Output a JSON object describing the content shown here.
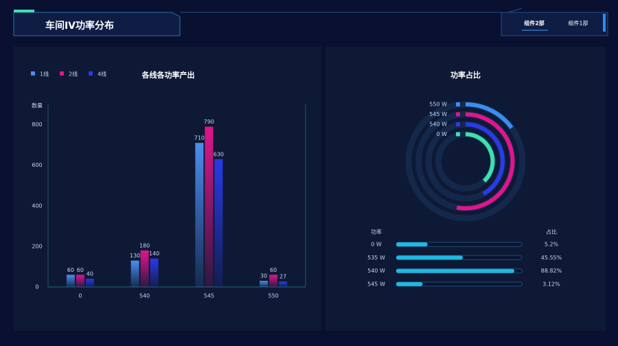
{
  "header": {
    "title": "车间IV功率分布",
    "tabs": [
      "组件2部",
      "组件1部"
    ]
  },
  "chart_data": [
    {
      "type": "bar",
      "title": "各线各功率产出",
      "y_label": "数量",
      "categories": [
        "0",
        "540",
        "545",
        "550"
      ],
      "series": [
        {
          "name": "1线",
          "color": "#4a8ef0",
          "values": [
            60,
            130,
            710,
            30
          ]
        },
        {
          "name": "2线",
          "color": "#e0158c",
          "values": [
            60,
            180,
            790,
            60
          ]
        },
        {
          "name": "4线",
          "color": "#2a3ae8",
          "values": [
            40,
            140,
            630,
            27
          ]
        }
      ],
      "ylim": [
        0,
        900
      ],
      "yticks": [
        0,
        200,
        400,
        600,
        800
      ]
    },
    {
      "type": "radial-bar",
      "title": "功率占比",
      "categories": [
        "550 W",
        "545 W",
        "540 W",
        "0 W"
      ],
      "colors": [
        "#3a8ef0",
        "#e0158c",
        "#2a3ae8",
        "#3de0b0"
      ],
      "values": [
        15,
        53,
        42,
        38
      ]
    }
  ],
  "table": {
    "columns": [
      "功率",
      "占比"
    ],
    "rows": [
      [
        "0 W",
        "5.2%"
      ],
      [
        "535 W",
        "45.55%"
      ],
      [
        "540 W",
        "88.82%"
      ],
      [
        "545 W",
        "3.12%"
      ]
    ],
    "progress": [
      25,
      53,
      94,
      21
    ]
  }
}
